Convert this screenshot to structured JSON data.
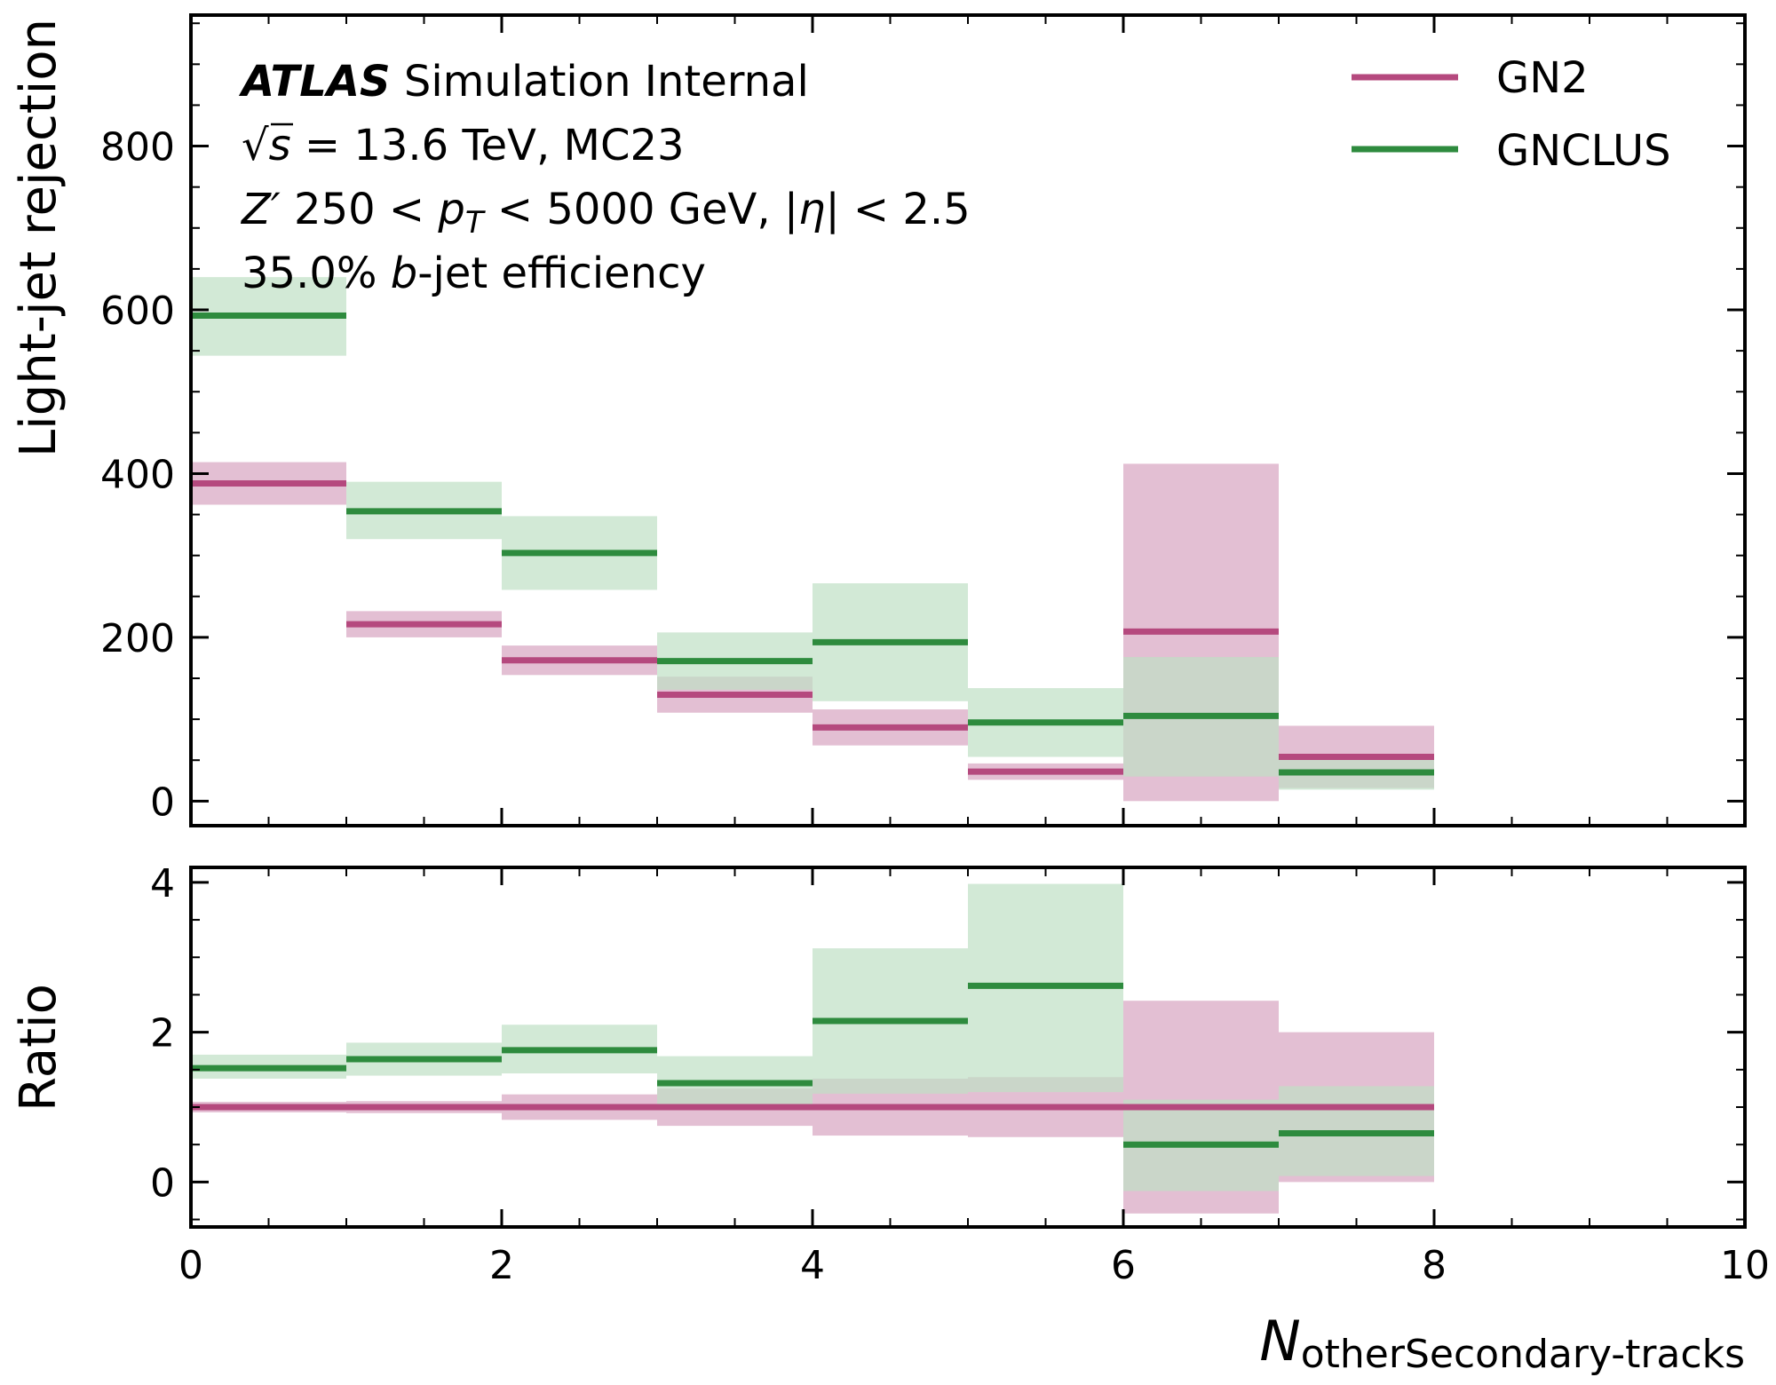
{
  "chart_data": {
    "type": "step",
    "annotations": {
      "atlas_bold": "ATLAS",
      "atlas_rest": " Simulation Internal",
      "line2_sqrt": "√",
      "line2_s": "s",
      "line2_rest": " = 13.6 TeV, MC23",
      "line3_z": "Z′",
      "line3_a": " 250 < ",
      "line3_pt": "p",
      "line3_pt_sub": "T",
      "line3_b": " < 5000 GeV, |",
      "line3_eta": "η",
      "line3_c": "| < 2.5",
      "line4_a": "35.0% ",
      "line4_b": "b",
      "line4_c": "-jet efficiency"
    },
    "xlabel_main": "N",
    "xlabel_sub": "otherSecondary-tracks",
    "xlim": [
      0,
      10
    ],
    "x_ticks": [
      "0",
      "2",
      "4",
      "6",
      "8",
      "10"
    ],
    "top": {
      "ylabel": "Light-jet rejection",
      "ylim": [
        -30,
        960
      ],
      "y_ticks": [
        "0",
        "200",
        "400",
        "600",
        "800"
      ],
      "series": [
        {
          "name": "GN2",
          "color": "#b5497e",
          "band_color": "#e3bfd3",
          "bins": [
            [
              0,
              1
            ],
            [
              1,
              2
            ],
            [
              2,
              3
            ],
            [
              3,
              4
            ],
            [
              4,
              5
            ],
            [
              5,
              6
            ],
            [
              6,
              7
            ],
            [
              7,
              8
            ]
          ],
          "values": [
            388,
            216,
            172,
            130,
            90,
            36,
            207,
            54
          ],
          "band_low": [
            362,
            200,
            154,
            108,
            68,
            26,
            0,
            16
          ],
          "band_high": [
            414,
            232,
            190,
            152,
            112,
            46,
            412,
            92
          ]
        },
        {
          "name": "GNCLUS",
          "color": "#2e8b3e",
          "band_color": "#bfdfc4",
          "bins": [
            [
              0,
              1
            ],
            [
              1,
              2
            ],
            [
              2,
              3
            ],
            [
              3,
              4
            ],
            [
              4,
              5
            ],
            [
              5,
              6
            ],
            [
              6,
              7
            ],
            [
              7,
              8
            ]
          ],
          "values": [
            593,
            354,
            303,
            171,
            194,
            96,
            104,
            35
          ],
          "band_low": [
            544,
            320,
            258,
            136,
            122,
            54,
            30,
            14
          ],
          "band_high": [
            640,
            390,
            348,
            206,
            266,
            138,
            176,
            56
          ]
        }
      ]
    },
    "bottom": {
      "ylabel": "Ratio",
      "ylim": [
        -0.6,
        4.2
      ],
      "y_ticks": [
        "0",
        "2",
        "4"
      ],
      "series": [
        {
          "name": "GN2",
          "color": "#b5497e",
          "band_color": "#e3bfd3",
          "bins": [
            [
              0,
              1
            ],
            [
              1,
              2
            ],
            [
              2,
              3
            ],
            [
              3,
              4
            ],
            [
              4,
              5
            ],
            [
              5,
              6
            ],
            [
              6,
              7
            ],
            [
              7,
              8
            ]
          ],
          "values": [
            1.0,
            1.0,
            1.0,
            1.0,
            1.0,
            1.0,
            1.0,
            1.0
          ],
          "band_low": [
            0.93,
            0.92,
            0.83,
            0.75,
            0.62,
            0.6,
            -0.42,
            0.0
          ],
          "band_high": [
            1.07,
            1.08,
            1.17,
            1.25,
            1.38,
            1.4,
            2.42,
            2.0
          ]
        },
        {
          "name": "GNCLUS",
          "color": "#2e8b3e",
          "band_color": "#bfdfc4",
          "bins": [
            [
              0,
              1
            ],
            [
              1,
              2
            ],
            [
              2,
              3
            ],
            [
              3,
              4
            ],
            [
              4,
              5
            ],
            [
              5,
              6
            ],
            [
              6,
              7
            ],
            [
              7,
              8
            ]
          ],
          "values": [
            1.52,
            1.64,
            1.76,
            1.32,
            2.15,
            2.62,
            0.5,
            0.65
          ],
          "band_low": [
            1.38,
            1.42,
            1.45,
            1.02,
            1.18,
            1.2,
            -0.12,
            0.08
          ],
          "band_high": [
            1.7,
            1.86,
            2.1,
            1.68,
            3.12,
            3.98,
            1.1,
            1.28
          ]
        }
      ]
    }
  }
}
